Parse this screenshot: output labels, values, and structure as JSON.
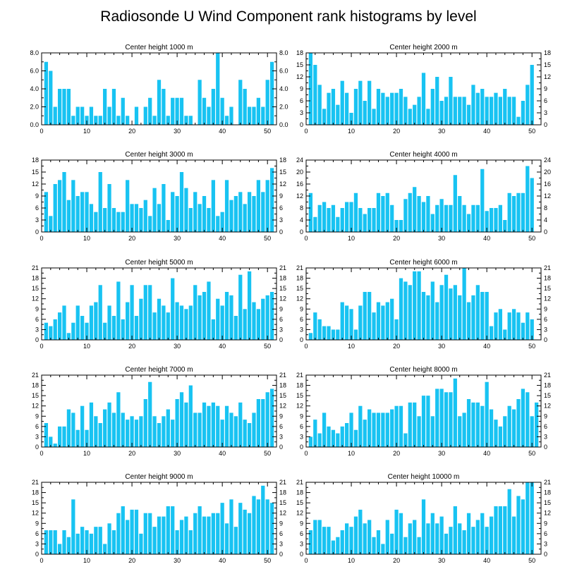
{
  "title": "Radiosonde U Wind Component rank histograms by level",
  "colors": {
    "bar": "#18c3f2",
    "axis": "#000000"
  },
  "chart_data": [
    {
      "type": "bar",
      "title": "Center height 1000 m",
      "x": [
        1,
        2,
        3,
        4,
        5,
        6,
        7,
        8,
        9,
        10,
        11,
        12,
        13,
        14,
        15,
        16,
        17,
        18,
        19,
        20,
        21,
        22,
        23,
        24,
        25,
        26,
        27,
        28,
        29,
        30,
        31,
        32,
        33,
        34,
        35,
        36,
        37,
        38,
        39,
        40,
        41,
        42,
        43,
        44,
        45,
        46,
        47,
        48,
        49,
        50,
        51
      ],
      "values": [
        7,
        6,
        2,
        4,
        4,
        4,
        1,
        2,
        2,
        1,
        2,
        1,
        1,
        4,
        2,
        4,
        1,
        3,
        1,
        0,
        2,
        0,
        2,
        3,
        1,
        5,
        4,
        1,
        3,
        3,
        3,
        1,
        1,
        0,
        5,
        3,
        2,
        4,
        8,
        3,
        1,
        2,
        0,
        5,
        4,
        2,
        2,
        3,
        2,
        5,
        7
      ],
      "xlim": [
        0,
        52
      ],
      "ylim": [
        0,
        8
      ],
      "xticks": [
        0,
        10,
        20,
        30,
        40,
        50
      ],
      "xtick_labels": [
        "0",
        "10",
        "20",
        "30",
        "40",
        "50"
      ],
      "yticks": [
        0,
        2,
        4,
        6,
        8
      ],
      "ytick_labels": [
        "0.0",
        "2.0",
        "4.0",
        "6.0",
        "8.0"
      ]
    },
    {
      "type": "bar",
      "title": "Center height 2000 m",
      "x": [
        1,
        2,
        3,
        4,
        5,
        6,
        7,
        8,
        9,
        10,
        11,
        12,
        13,
        14,
        15,
        16,
        17,
        18,
        19,
        20,
        21,
        22,
        23,
        24,
        25,
        26,
        27,
        28,
        29,
        30,
        31,
        32,
        33,
        34,
        35,
        36,
        37,
        38,
        39,
        40,
        41,
        42,
        43,
        44,
        45,
        46,
        47,
        48,
        49,
        50,
        51
      ],
      "values": [
        18,
        15,
        10,
        4,
        8,
        9,
        5,
        11,
        8,
        3,
        9,
        11,
        6,
        11,
        4,
        9,
        8,
        7,
        8,
        8,
        9,
        7,
        4,
        5,
        7,
        13,
        4,
        9,
        12,
        6,
        7,
        12,
        7,
        7,
        7,
        5,
        10,
        8,
        9,
        7,
        7,
        8,
        7,
        9,
        7,
        7,
        2,
        6,
        10,
        15,
        0
      ],
      "xlim": [
        0,
        52
      ],
      "ylim": [
        0,
        18
      ],
      "xticks": [
        0,
        10,
        20,
        30,
        40,
        50
      ],
      "xtick_labels": [
        "0",
        "10",
        "20",
        "30",
        "40",
        "50"
      ],
      "yticks": [
        0,
        3,
        6,
        9,
        12,
        15,
        18
      ],
      "ytick_labels": [
        "0",
        "3",
        "6",
        "9",
        "12",
        "15",
        "18"
      ]
    },
    {
      "type": "bar",
      "title": "Center height 3000 m",
      "x": [
        1,
        2,
        3,
        4,
        5,
        6,
        7,
        8,
        9,
        10,
        11,
        12,
        13,
        14,
        15,
        16,
        17,
        18,
        19,
        20,
        21,
        22,
        23,
        24,
        25,
        26,
        27,
        28,
        29,
        30,
        31,
        32,
        33,
        34,
        35,
        36,
        37,
        38,
        39,
        40,
        41,
        42,
        43,
        44,
        45,
        46,
        47,
        48,
        49,
        50,
        51
      ],
      "values": [
        10,
        4,
        12,
        13,
        15,
        8,
        13,
        9,
        10,
        10,
        7,
        5,
        15,
        6,
        12,
        6,
        5,
        5,
        13,
        7,
        7,
        6,
        8,
        4,
        11,
        7,
        12,
        3,
        10,
        9,
        15,
        11,
        6,
        10,
        7,
        9,
        6,
        13,
        4,
        5,
        13,
        8,
        9,
        10,
        7,
        10,
        9,
        13,
        10,
        13,
        16
      ],
      "xlim": [
        0,
        52
      ],
      "ylim": [
        0,
        18
      ],
      "xticks": [
        0,
        10,
        20,
        30,
        40,
        50
      ],
      "xtick_labels": [
        "0",
        "10",
        "20",
        "30",
        "40",
        "50"
      ],
      "yticks": [
        0,
        3,
        6,
        9,
        12,
        15,
        18
      ],
      "ytick_labels": [
        "0",
        "3",
        "6",
        "9",
        "12",
        "15",
        "18"
      ]
    },
    {
      "type": "bar",
      "title": "Center height 4000 m",
      "x": [
        1,
        2,
        3,
        4,
        5,
        6,
        7,
        8,
        9,
        10,
        11,
        12,
        13,
        14,
        15,
        16,
        17,
        18,
        19,
        20,
        21,
        22,
        23,
        24,
        25,
        26,
        27,
        28,
        29,
        30,
        31,
        32,
        33,
        34,
        35,
        36,
        37,
        38,
        39,
        40,
        41,
        42,
        43,
        44,
        45,
        46,
        47,
        48,
        49,
        50,
        51
      ],
      "values": [
        13,
        5,
        9,
        10,
        8,
        9,
        5,
        8,
        10,
        10,
        13,
        8,
        6,
        8,
        8,
        13,
        12,
        13,
        9,
        4,
        4,
        11,
        13,
        15,
        12,
        10,
        12,
        6,
        9,
        11,
        9,
        9,
        19,
        12,
        9,
        6,
        9,
        9,
        21,
        7,
        8,
        8,
        9,
        4,
        13,
        12,
        13,
        13,
        22,
        18,
        0
      ],
      "xlim": [
        0,
        52
      ],
      "ylim": [
        0,
        24
      ],
      "xticks": [
        0,
        10,
        20,
        30,
        40,
        50
      ],
      "xtick_labels": [
        "0",
        "10",
        "20",
        "30",
        "40",
        "50"
      ],
      "yticks": [
        0,
        4,
        8,
        12,
        16,
        20,
        24
      ],
      "ytick_labels": [
        "0",
        "4",
        "8",
        "12",
        "16",
        "20",
        "24"
      ]
    },
    {
      "type": "bar",
      "title": "Center height 5000 m",
      "x": [
        1,
        2,
        3,
        4,
        5,
        6,
        7,
        8,
        9,
        10,
        11,
        12,
        13,
        14,
        15,
        16,
        17,
        18,
        19,
        20,
        21,
        22,
        23,
        24,
        25,
        26,
        27,
        28,
        29,
        30,
        31,
        32,
        33,
        34,
        35,
        36,
        37,
        38,
        39,
        40,
        41,
        42,
        43,
        44,
        45,
        46,
        47,
        48,
        49,
        50,
        51
      ],
      "values": [
        5,
        4,
        6,
        8,
        10,
        2,
        5,
        10,
        7,
        5,
        10,
        11,
        16,
        5,
        10,
        7,
        17,
        6,
        11,
        16,
        7,
        12,
        16,
        16,
        8,
        12,
        10,
        8,
        18,
        11,
        10,
        9,
        10,
        16,
        13,
        14,
        17,
        6,
        12,
        10,
        14,
        13,
        7,
        19,
        9,
        20,
        11,
        9,
        12,
        13,
        14
      ],
      "xlim": [
        0,
        52
      ],
      "ylim": [
        0,
        21
      ],
      "xticks": [
        0,
        10,
        20,
        30,
        40,
        50
      ],
      "xtick_labels": [
        "0",
        "10",
        "20",
        "30",
        "40",
        "50"
      ],
      "yticks": [
        0,
        3,
        6,
        9,
        12,
        15,
        18,
        21
      ],
      "ytick_labels": [
        "0",
        "3",
        "6",
        "9",
        "12",
        "15",
        "18",
        "21"
      ]
    },
    {
      "type": "bar",
      "title": "Center height 6000 m",
      "x": [
        1,
        2,
        3,
        4,
        5,
        6,
        7,
        8,
        9,
        10,
        11,
        12,
        13,
        14,
        15,
        16,
        17,
        18,
        19,
        20,
        21,
        22,
        23,
        24,
        25,
        26,
        27,
        28,
        29,
        30,
        31,
        32,
        33,
        34,
        35,
        36,
        37,
        38,
        39,
        40,
        41,
        42,
        43,
        44,
        45,
        46,
        47,
        48,
        49,
        50,
        51
      ],
      "values": [
        2,
        8,
        6,
        4,
        4,
        3,
        3,
        11,
        10,
        9,
        3,
        10,
        14,
        14,
        8,
        11,
        10,
        11,
        12,
        6,
        18,
        17,
        16,
        20,
        20,
        14,
        13,
        17,
        11,
        16,
        19,
        15,
        16,
        13,
        21,
        11,
        13,
        16,
        14,
        14,
        4,
        8,
        9,
        3,
        8,
        9,
        8,
        5,
        8,
        6,
        0
      ],
      "xlim": [
        0,
        52
      ],
      "ylim": [
        0,
        21
      ],
      "xticks": [
        0,
        10,
        20,
        30,
        40,
        50
      ],
      "xtick_labels": [
        "0",
        "10",
        "20",
        "30",
        "40",
        "50"
      ],
      "yticks": [
        0,
        3,
        6,
        9,
        12,
        15,
        18,
        21
      ],
      "ytick_labels": [
        "0",
        "3",
        "6",
        "9",
        "12",
        "15",
        "18",
        "21"
      ]
    },
    {
      "type": "bar",
      "title": "Center height 7000 m",
      "x": [
        1,
        2,
        3,
        4,
        5,
        6,
        7,
        8,
        9,
        10,
        11,
        12,
        13,
        14,
        15,
        16,
        17,
        18,
        19,
        20,
        21,
        22,
        23,
        24,
        25,
        26,
        27,
        28,
        29,
        30,
        31,
        32,
        33,
        34,
        35,
        36,
        37,
        38,
        39,
        40,
        41,
        42,
        43,
        44,
        45,
        46,
        47,
        48,
        49,
        50,
        51
      ],
      "values": [
        7,
        3,
        1,
        6,
        6,
        11,
        10,
        5,
        12,
        5,
        13,
        9,
        7,
        11,
        13,
        10,
        16,
        10,
        8,
        9,
        8,
        9,
        14,
        19,
        9,
        7,
        9,
        11,
        8,
        14,
        16,
        13,
        18,
        10,
        10,
        13,
        12,
        13,
        12,
        8,
        12,
        10,
        9,
        13,
        8,
        7,
        10,
        14,
        14,
        16,
        17
      ],
      "xlim": [
        0,
        52
      ],
      "ylim": [
        0,
        21
      ],
      "xticks": [
        0,
        10,
        20,
        30,
        40,
        50
      ],
      "xtick_labels": [
        "0",
        "10",
        "20",
        "30",
        "40",
        "50"
      ],
      "yticks": [
        0,
        3,
        6,
        9,
        12,
        15,
        18,
        21
      ],
      "ytick_labels": [
        "0",
        "3",
        "6",
        "9",
        "12",
        "15",
        "18",
        "21"
      ]
    },
    {
      "type": "bar",
      "title": "Center height 8000 m",
      "x": [
        1,
        2,
        3,
        4,
        5,
        6,
        7,
        8,
        9,
        10,
        11,
        12,
        13,
        14,
        15,
        16,
        17,
        18,
        19,
        20,
        21,
        22,
        23,
        24,
        25,
        26,
        27,
        28,
        29,
        30,
        31,
        32,
        33,
        34,
        35,
        36,
        37,
        38,
        39,
        40,
        41,
        42,
        43,
        44,
        45,
        46,
        47,
        48,
        49,
        50,
        51
      ],
      "values": [
        3,
        8,
        4,
        10,
        6,
        5,
        4,
        6,
        7,
        10,
        5,
        12,
        8,
        11,
        10,
        10,
        10,
        10,
        11,
        12,
        12,
        4,
        13,
        13,
        9,
        15,
        15,
        9,
        17,
        17,
        16,
        16,
        20,
        9,
        10,
        14,
        13,
        13,
        12,
        19,
        11,
        8,
        6,
        9,
        12,
        11,
        14,
        17,
        16,
        9,
        13
      ],
      "xlim": [
        0,
        52
      ],
      "ylim": [
        0,
        21
      ],
      "xticks": [
        0,
        10,
        20,
        30,
        40,
        50
      ],
      "xtick_labels": [
        "0",
        "10",
        "20",
        "30",
        "40",
        "50"
      ],
      "yticks": [
        0,
        3,
        6,
        9,
        12,
        15,
        18,
        21
      ],
      "ytick_labels": [
        "0",
        "3",
        "6",
        "9",
        "12",
        "15",
        "18",
        "21"
      ]
    },
    {
      "type": "bar",
      "title": "Center height 9000 m",
      "x": [
        1,
        2,
        3,
        4,
        5,
        6,
        7,
        8,
        9,
        10,
        11,
        12,
        13,
        14,
        15,
        16,
        17,
        18,
        19,
        20,
        21,
        22,
        23,
        24,
        25,
        26,
        27,
        28,
        29,
        30,
        31,
        32,
        33,
        34,
        35,
        36,
        37,
        38,
        39,
        40,
        41,
        42,
        43,
        44,
        45,
        46,
        47,
        48,
        49,
        50,
        51
      ],
      "values": [
        7,
        7,
        7,
        3,
        7,
        5,
        16,
        6,
        8,
        7,
        6,
        8,
        8,
        3,
        9,
        7,
        12,
        14,
        10,
        13,
        13,
        6,
        12,
        12,
        8,
        11,
        11,
        14,
        14,
        7,
        10,
        11,
        7,
        12,
        14,
        11,
        11,
        12,
        12,
        15,
        9,
        16,
        8,
        15,
        13,
        12,
        17,
        16,
        20,
        16,
        15
      ],
      "xlim": [
        0,
        52
      ],
      "ylim": [
        0,
        21
      ],
      "xticks": [
        0,
        10,
        20,
        30,
        40,
        50
      ],
      "xtick_labels": [
        "0",
        "10",
        "20",
        "30",
        "40",
        "50"
      ],
      "yticks": [
        0,
        3,
        6,
        9,
        12,
        15,
        18,
        21
      ],
      "ytick_labels": [
        "0",
        "3",
        "6",
        "9",
        "12",
        "15",
        "18",
        "21"
      ]
    },
    {
      "type": "bar",
      "title": "Center height 10000 m",
      "x": [
        1,
        2,
        3,
        4,
        5,
        6,
        7,
        8,
        9,
        10,
        11,
        12,
        13,
        14,
        15,
        16,
        17,
        18,
        19,
        20,
        21,
        22,
        23,
        24,
        25,
        26,
        27,
        28,
        29,
        30,
        31,
        32,
        33,
        34,
        35,
        36,
        37,
        38,
        39,
        40,
        41,
        42,
        43,
        44,
        45,
        46,
        47,
        48,
        49,
        50,
        51
      ],
      "values": [
        7,
        10,
        10,
        8,
        8,
        4,
        5,
        7,
        9,
        8,
        11,
        13,
        9,
        10,
        5,
        7,
        3,
        10,
        6,
        13,
        12,
        5,
        9,
        10,
        5,
        16,
        9,
        12,
        9,
        11,
        6,
        8,
        14,
        9,
        7,
        12,
        8,
        10,
        12,
        8,
        11,
        14,
        14,
        14,
        19,
        11,
        17,
        16,
        21,
        21,
        0
      ],
      "xlim": [
        0,
        52
      ],
      "ylim": [
        0,
        21
      ],
      "xticks": [
        0,
        10,
        20,
        30,
        40,
        50
      ],
      "xtick_labels": [
        "0",
        "10",
        "20",
        "30",
        "40",
        "50"
      ],
      "yticks": [
        0,
        3,
        6,
        9,
        12,
        15,
        18,
        21
      ],
      "ytick_labels": [
        "0",
        "3",
        "6",
        "9",
        "12",
        "15",
        "18",
        "21"
      ]
    }
  ]
}
